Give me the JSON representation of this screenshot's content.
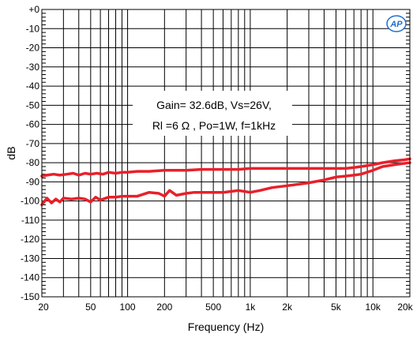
{
  "chart_data": {
    "type": "line",
    "xlabel": "Frequency (Hz)",
    "ylabel": "dB",
    "x_scale": "log",
    "xlim": [
      20,
      20000
    ],
    "ylim": [
      -150,
      0
    ],
    "grid": true,
    "x_ticks": [
      20,
      50,
      100,
      200,
      500,
      1000,
      2000,
      5000,
      10000,
      20000
    ],
    "x_tick_labels": [
      "20",
      "50",
      "100",
      "200",
      "500",
      "1k",
      "2k",
      "5k",
      "10k",
      "20k"
    ],
    "y_ticks": [
      0,
      -10,
      -20,
      -30,
      -40,
      -50,
      -60,
      -70,
      -80,
      -90,
      -100,
      -110,
      -120,
      -130,
      -140,
      -150
    ],
    "y_tick_labels": [
      "+0",
      "-10",
      "-20",
      "-30",
      "-40",
      "-50",
      "-60",
      "-70",
      "-80",
      "-90",
      "-100",
      "-110",
      "-120",
      "-130",
      "-140",
      "-150"
    ],
    "annotations": [
      "Gain= 32.6dB, Vs=26V,",
      "Rl =6 Ω , Po=1W, f=1kHz"
    ],
    "logo": "AP",
    "line_color": "#e8202a",
    "series": [
      {
        "x": [
          20,
          22,
          25,
          28,
          32,
          36,
          40,
          45,
          50,
          56,
          63,
          70,
          80,
          90,
          100,
          120,
          150,
          200,
          250,
          300,
          400,
          500,
          600,
          800,
          1000,
          1500,
          2000,
          3000,
          4000,
          5000,
          6000,
          7000,
          8000,
          10000,
          12000,
          15000,
          18000,
          20000
        ],
        "y": [
          -87,
          -86.5,
          -86,
          -86.5,
          -86,
          -85.5,
          -86.5,
          -85.5,
          -86,
          -85.5,
          -86,
          -85,
          -85.5,
          -85,
          -85,
          -84.5,
          -84.5,
          -84,
          -84,
          -84,
          -83.5,
          -83.5,
          -83.5,
          -83.5,
          -83,
          -83,
          -83,
          -83,
          -83,
          -83,
          -83,
          -82.5,
          -82,
          -81,
          -80,
          -79,
          -78.5,
          -78
        ]
      },
      {
        "x": [
          20,
          22,
          24,
          26,
          28,
          30,
          35,
          40,
          45,
          50,
          55,
          60,
          70,
          80,
          90,
          100,
          120,
          150,
          180,
          200,
          220,
          250,
          300,
          350,
          400,
          500,
          600,
          700,
          800,
          1000,
          1200,
          1500,
          2000,
          3000,
          4000,
          5000,
          6000,
          7000,
          8000,
          10000,
          12000,
          15000,
          20000
        ],
        "y": [
          -102,
          -98.5,
          -101,
          -99,
          -100.5,
          -98.5,
          -99,
          -98.5,
          -99,
          -100.5,
          -98,
          -99.5,
          -98,
          -98,
          -97.5,
          -97.5,
          -97.5,
          -95.5,
          -96,
          -97.5,
          -94.5,
          -97,
          -96,
          -95.5,
          -95.5,
          -95.5,
          -95.5,
          -95,
          -94.5,
          -95.5,
          -94.5,
          -93,
          -92,
          -90.5,
          -89,
          -87.5,
          -87,
          -86.5,
          -86,
          -84,
          -82,
          -81,
          -80
        ]
      }
    ]
  }
}
